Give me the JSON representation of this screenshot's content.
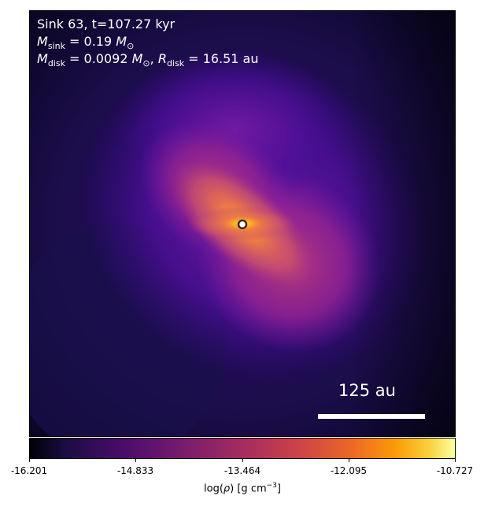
{
  "title_line": "Sink 63, t=107.27 kyr",
  "msink": {
    "symbol": "M",
    "sub": "sink",
    "eq": " = 0.19 ",
    "unit": "M",
    "unit_sub": "⊙"
  },
  "mdisk": {
    "symbol": "M",
    "sub": "disk",
    "eq": " = 0.0092 ",
    "unit": "M",
    "unit_sub": "⊙",
    "sep": ", ",
    "r_symbol": "R",
    "r_sub": "disk",
    "r_eq": " = 16.51 au"
  },
  "scale_bar_label": "125 au",
  "colorbar": {
    "ticks": [
      "-16.201",
      "-14.833",
      "-13.464",
      "-12.095",
      "-10.727"
    ],
    "label_prefix": "log(",
    "label_rho": "ρ",
    "label_mid": ") [g cm",
    "label_exp": "−3",
    "label_end": "]",
    "colormap": "plasma"
  },
  "colors": {
    "background": "#140b34",
    "sink_marker": "#ffffff"
  }
}
